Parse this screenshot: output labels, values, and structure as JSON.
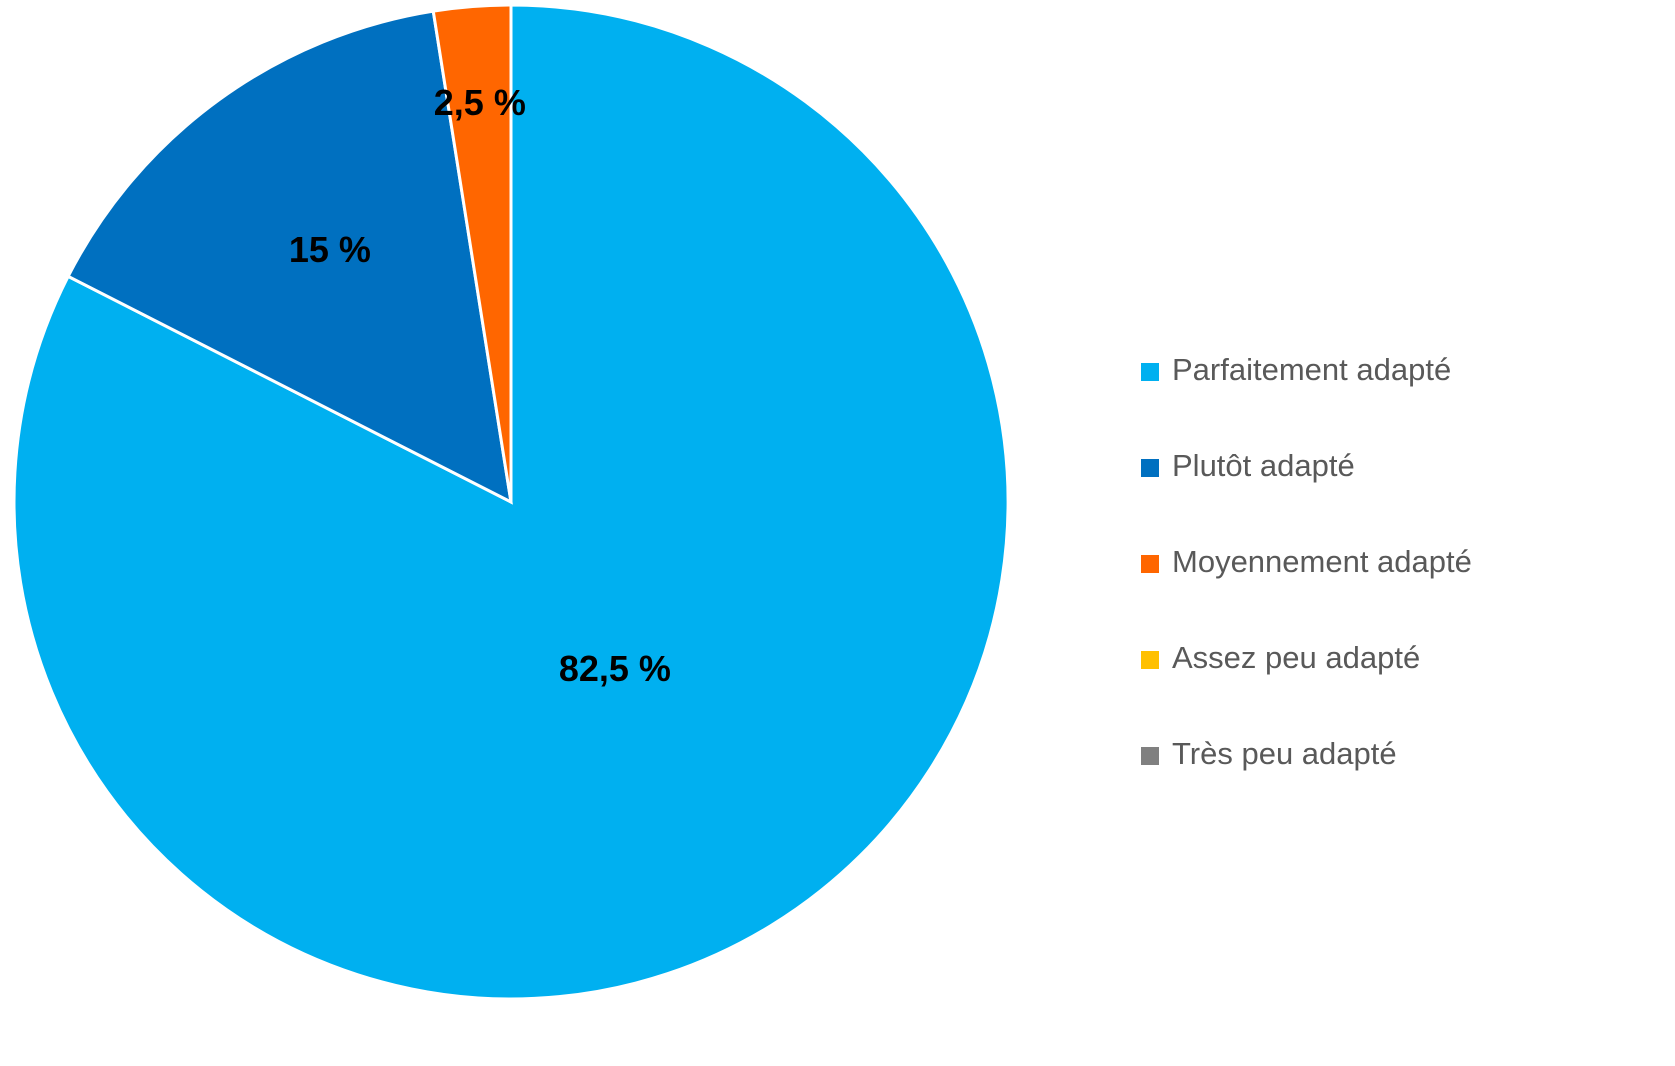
{
  "chart_data": {
    "type": "pie",
    "categories": [
      "Parfaitement adapté",
      "Plutôt adapté",
      "Moyennement adapté",
      "Assez peu adapté",
      "Très peu adapté"
    ],
    "values": [
      82.5,
      15,
      2.5,
      0,
      0
    ],
    "value_labels": [
      "82,5 %",
      "15 %",
      "2,5 %",
      null,
      null
    ],
    "colors": [
      "#00B0F0",
      "#0070C0",
      "#FF6600",
      "#FFC000",
      "#808080"
    ],
    "legend": "right"
  }
}
